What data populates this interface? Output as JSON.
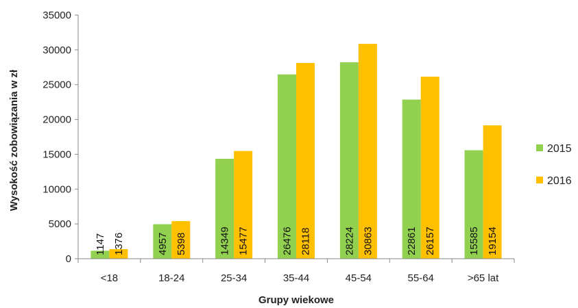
{
  "chart_data": {
    "type": "bar",
    "title": "",
    "xlabel": "Grupy wiekowe",
    "ylabel": "Wysokość zobowiązania w zł",
    "categories": [
      "<18",
      "18-24",
      "25-34",
      "35-44",
      "45-54",
      "55-64",
      ">65 lat"
    ],
    "series": [
      {
        "name": "2015",
        "color": "#92D050",
        "values": [
          1147,
          4957,
          14349,
          26476,
          28224,
          22861,
          15585
        ]
      },
      {
        "name": "2016",
        "color": "#FFC000",
        "values": [
          1376,
          5398,
          15477,
          28118,
          30863,
          26157,
          19154
        ]
      }
    ],
    "ylim": [
      0,
      35000
    ],
    "yticks": [
      0,
      5000,
      10000,
      15000,
      20000,
      25000,
      30000,
      35000
    ],
    "grid": false,
    "legend": "right",
    "data_labels": "vertical-inside-bar"
  }
}
